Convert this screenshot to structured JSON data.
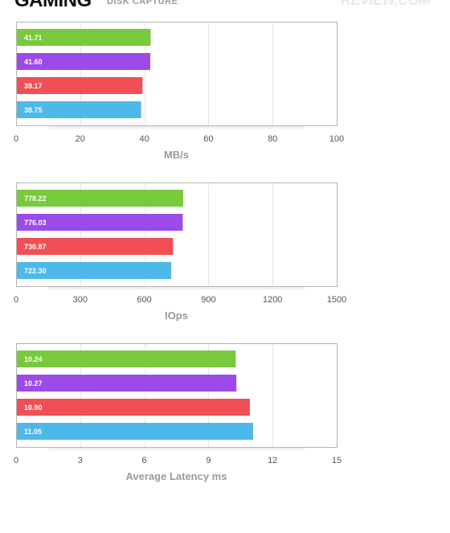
{
  "header": {
    "title": "GAMING",
    "subtitle": "DISK CAPTURE",
    "watermark": "REVIEW.COM"
  },
  "colors": {
    "green": "#78c93c",
    "purple": "#9b4be8",
    "red": "#ef4f55",
    "blue": "#4db8ea",
    "grid": "#e5e5e5",
    "frame": "#b3b3b3"
  },
  "chart_data": [
    {
      "type": "bar",
      "orientation": "horizontal",
      "series": [
        {
          "color": "green",
          "value": 41.71,
          "label": "41.71"
        },
        {
          "color": "purple",
          "value": 41.6,
          "label": "41.60"
        },
        {
          "color": "red",
          "value": 39.17,
          "label": "39.17"
        },
        {
          "color": "blue",
          "value": 38.75,
          "label": "38.75"
        }
      ],
      "xlabel": "MB/s",
      "xlim": [
        0,
        100
      ],
      "ticks": [
        "0",
        "20",
        "40",
        "60",
        "80",
        "100"
      ],
      "grid": true
    },
    {
      "type": "bar",
      "orientation": "horizontal",
      "series": [
        {
          "color": "green",
          "value": 778.22,
          "label": "778.22"
        },
        {
          "color": "purple",
          "value": 776.03,
          "label": "776.03"
        },
        {
          "color": "red",
          "value": 730.87,
          "label": "730.87"
        },
        {
          "color": "blue",
          "value": 722.3,
          "label": "722.30"
        }
      ],
      "xlabel": "IOps",
      "xlim": [
        0,
        1500
      ],
      "ticks": [
        "0",
        "300",
        "600",
        "900",
        "1200",
        "1500"
      ],
      "grid": true
    },
    {
      "type": "bar",
      "orientation": "horizontal",
      "series": [
        {
          "color": "green",
          "value": 10.24,
          "label": "10.24"
        },
        {
          "color": "purple",
          "value": 10.27,
          "label": "10.27"
        },
        {
          "color": "red",
          "value": 10.9,
          "label": "10.90"
        },
        {
          "color": "blue",
          "value": 11.05,
          "label": "11.05"
        }
      ],
      "xlabel": "Average Latency ms",
      "xlim": [
        0,
        15
      ],
      "ticks": [
        "0",
        "3",
        "6",
        "9",
        "12",
        "15"
      ],
      "grid": true
    }
  ]
}
